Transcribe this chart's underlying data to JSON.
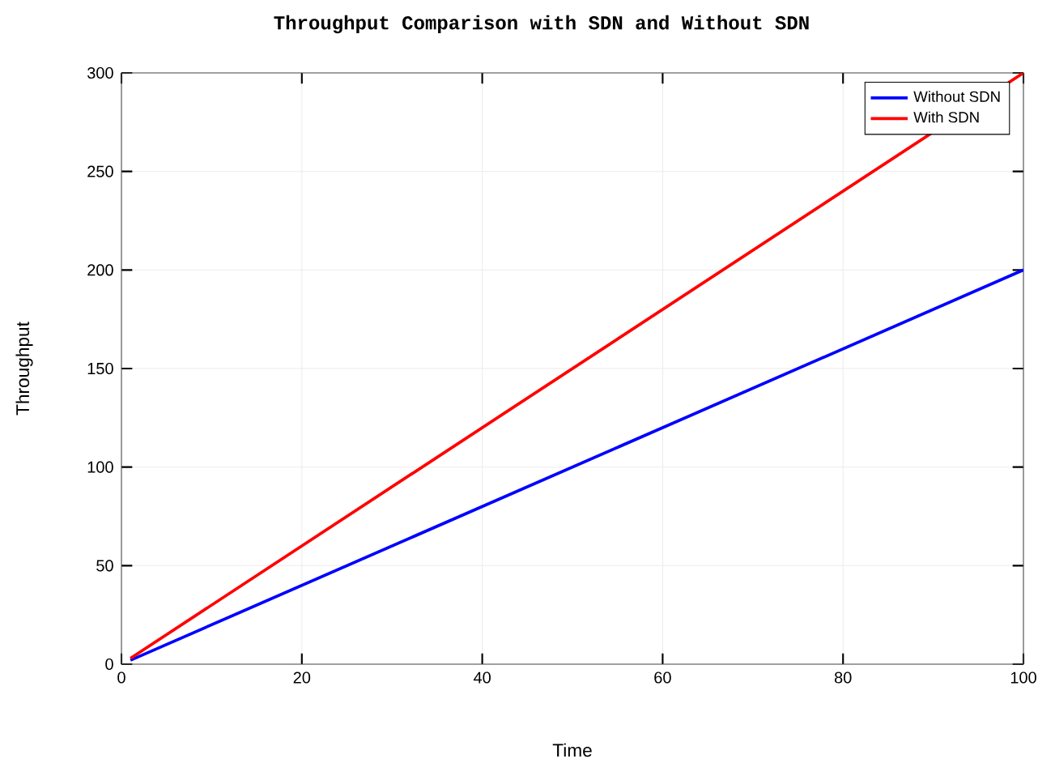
{
  "chart_data": {
    "type": "line",
    "title": "Throughput Comparison with SDN and Without SDN",
    "xlabel": "Time",
    "ylabel": "Throughput",
    "x": [
      1,
      100
    ],
    "series": [
      {
        "name": "Without SDN",
        "color": "#0000ff",
        "values": [
          2,
          200
        ]
      },
      {
        "name": "With SDN",
        "color": "#ff0000",
        "values": [
          3,
          300
        ]
      }
    ],
    "xlim": [
      0,
      100
    ],
    "xticks": [
      0,
      20,
      40,
      60,
      80,
      100
    ],
    "ylim": [
      0,
      300
    ],
    "yticks": [
      0,
      50,
      100,
      150,
      200,
      250,
      300
    ],
    "grid": true,
    "legend": "top right",
    "marker": "none",
    "line_style": "solid"
  }
}
